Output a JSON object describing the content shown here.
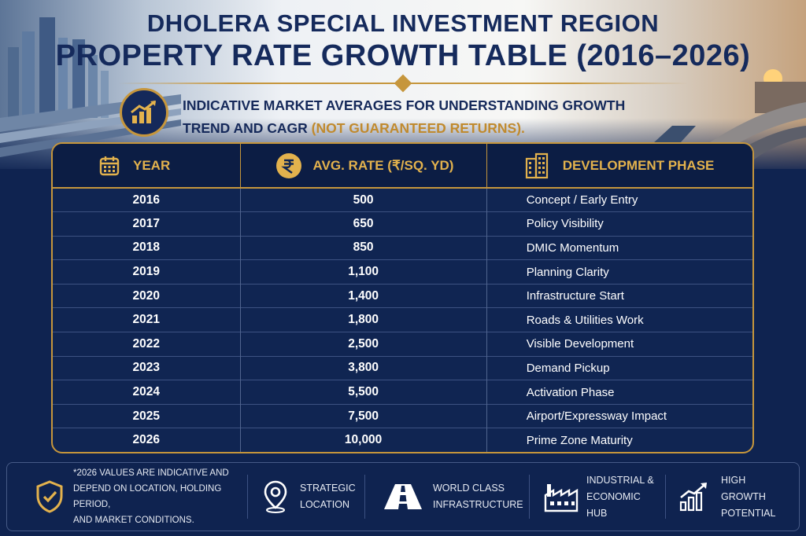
{
  "header": {
    "title_line1": "DHOLERA SPECIAL INVESTMENT REGION",
    "title_line2": "PROPERTY RATE GROWTH TABLE (2016–2026)",
    "subtitle_main": "INDICATIVE MARKET AVERAGES FOR UNDERSTANDING GROWTH TREND AND CAGR ",
    "subtitle_highlight": "(NOT GUARANTEED RETURNS).",
    "icon": "growth-chart-icon"
  },
  "table": {
    "columns": [
      {
        "label": "YEAR",
        "icon": "calendar-icon"
      },
      {
        "label": "AVG. RATE (₹/SQ. YD)",
        "icon": "rupee-icon"
      },
      {
        "label": "DEVELOPMENT PHASE",
        "icon": "building-icon"
      }
    ],
    "rows": [
      {
        "year": "2016",
        "rate": "500",
        "phase": "Concept / Early Entry"
      },
      {
        "year": "2017",
        "rate": "650",
        "phase": "Policy Visibility"
      },
      {
        "year": "2018",
        "rate": "850",
        "phase": "DMIC Momentum"
      },
      {
        "year": "2019",
        "rate": "1,100",
        "phase": "Planning Clarity"
      },
      {
        "year": "2020",
        "rate": "1,400",
        "phase": "Infrastructure Start"
      },
      {
        "year": "2021",
        "rate": "1,800",
        "phase": "Roads & Utilities Work"
      },
      {
        "year": "2022",
        "rate": "2,500",
        "phase": "Visible Development"
      },
      {
        "year": "2023",
        "rate": "3,800",
        "phase": "Demand Pickup"
      },
      {
        "year": "2024",
        "rate": "5,500",
        "phase": "Activation Phase"
      },
      {
        "year": "2025",
        "rate": "7,500",
        "phase": "Airport/Expressway Impact"
      },
      {
        "year": "2026",
        "rate": "10,000",
        "phase": "Prime Zone Maturity"
      }
    ]
  },
  "footer": {
    "note": {
      "icon": "shield-check-icon",
      "line1": "*2026 VALUES ARE INDICATIVE AND",
      "line2": "DEPEND ON LOCATION, HOLDING PERIOD,",
      "line3": "AND MARKET CONDITIONS."
    },
    "features": [
      {
        "icon": "location-pin-icon",
        "line1": "STRATEGIC",
        "line2": "LOCATION"
      },
      {
        "icon": "road-icon",
        "line1": "WORLD CLASS",
        "line2": "INFRASTRUCTURE"
      },
      {
        "icon": "factory-icon",
        "line1": "INDUSTRIAL &",
        "line2": "ECONOMIC HUB"
      },
      {
        "icon": "growth-bars-icon",
        "line1": "HIGH GROWTH",
        "line2": "POTENTIAL"
      }
    ]
  },
  "colors": {
    "navy": "#102552",
    "gold": "#c6963c",
    "gold_text": "#e3b24d",
    "title": "#152a5c"
  }
}
